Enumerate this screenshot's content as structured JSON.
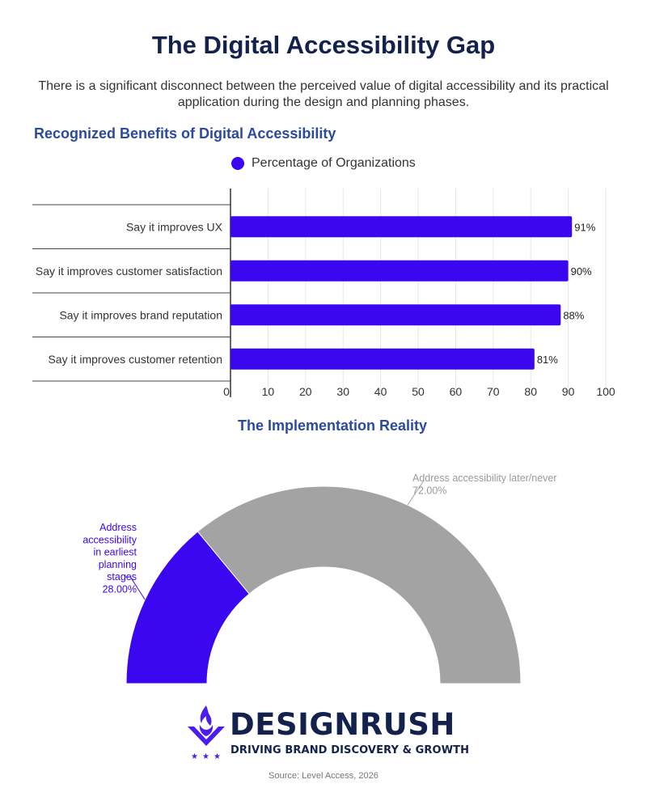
{
  "title": "The Digital Accessibility Gap",
  "subtitle": "There is a significant disconnect between the perceived value of digital accessibility and its practical application during the design and planning phases.",
  "colors": {
    "accent": "#3b06f0",
    "gray": "#a3a3a3",
    "title": "#13214d",
    "section": "#2a4aa0"
  },
  "chart_data": [
    {
      "type": "bar",
      "orientation": "horizontal",
      "title": "Recognized Benefits of Digital Accessibility",
      "categories": [
        "Say it improves UX",
        "Say it improves customer satisfaction",
        "Say it improves brand reputation",
        "Say it improves customer retention"
      ],
      "series": [
        {
          "name": "Percentage of Organizations",
          "values": [
            91,
            90,
            88,
            81
          ]
        }
      ],
      "value_labels": [
        "91%",
        "90%",
        "88%",
        "81%"
      ],
      "xlim": [
        0,
        100
      ],
      "x_ticks": [
        0,
        10,
        20,
        30,
        40,
        50,
        60,
        70,
        80,
        90,
        100
      ],
      "grid": true,
      "legend": "top-center"
    },
    {
      "type": "pie",
      "subtype": "semi-donut",
      "title": "The Implementation Reality",
      "slices": [
        {
          "label_lines": [
            "Address",
            "accessibility",
            "in earliest",
            "planning",
            "stages"
          ],
          "value": 28,
          "value_label": "28.00%",
          "color": "#3b06f0"
        },
        {
          "label_lines": [
            "Address accessibility later/never"
          ],
          "value": 72,
          "value_label": "72.00%",
          "color": "#a3a3a3"
        }
      ]
    }
  ],
  "logo": {
    "wordmark": "DESIGNRUSH",
    "tagline": "DRIVING BRAND DISCOVERY & GROWTH"
  },
  "source": "Source: Level Access, 2026"
}
